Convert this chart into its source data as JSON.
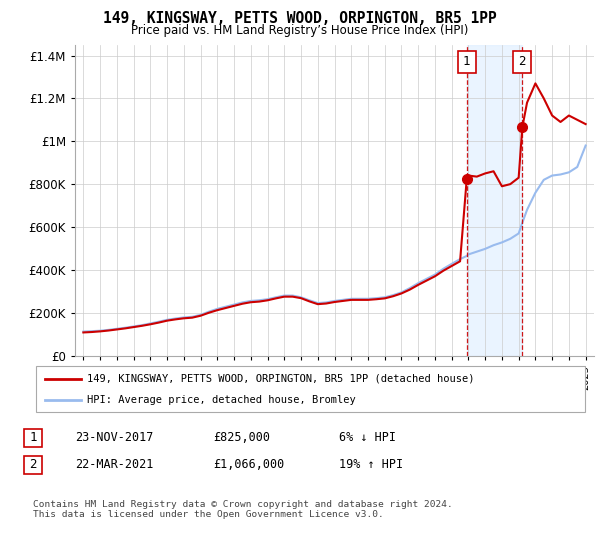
{
  "title": "149, KINGSWAY, PETTS WOOD, ORPINGTON, BR5 1PP",
  "subtitle": "Price paid vs. HM Land Registry’s House Price Index (HPI)",
  "legend_line1": "149, KINGSWAY, PETTS WOOD, ORPINGTON, BR5 1PP (detached house)",
  "legend_line2": "HPI: Average price, detached house, Bromley",
  "annotation1_date": "23-NOV-2017",
  "annotation1_price": "£825,000",
  "annotation1_hpi": "6% ↓ HPI",
  "annotation2_date": "22-MAR-2021",
  "annotation2_price": "£1,066,000",
  "annotation2_hpi": "19% ↑ HPI",
  "footnote": "Contains HM Land Registry data © Crown copyright and database right 2024.\nThis data is licensed under the Open Government Licence v3.0.",
  "red_color": "#cc0000",
  "blue_color": "#99bbee",
  "background_color": "#ffffff",
  "grid_color": "#cccccc",
  "transaction1_x": 2017.9,
  "transaction1_y": 825000,
  "transaction2_x": 2021.22,
  "transaction2_y": 1066000,
  "ylim": [
    0,
    1450000
  ],
  "xlim": [
    1994.5,
    2025.5
  ],
  "hpi_years": [
    1995.0,
    1995.5,
    1996.0,
    1996.5,
    1997.0,
    1997.5,
    1998.0,
    1998.5,
    1999.0,
    1999.5,
    2000.0,
    2000.5,
    2001.0,
    2001.5,
    2002.0,
    2002.5,
    2003.0,
    2003.5,
    2004.0,
    2004.5,
    2005.0,
    2005.5,
    2006.0,
    2006.5,
    2007.0,
    2007.5,
    2008.0,
    2008.5,
    2009.0,
    2009.5,
    2010.0,
    2010.5,
    2011.0,
    2011.5,
    2012.0,
    2012.5,
    2013.0,
    2013.5,
    2014.0,
    2014.5,
    2015.0,
    2015.5,
    2016.0,
    2016.5,
    2017.0,
    2017.5,
    2017.9,
    2018.0,
    2018.5,
    2019.0,
    2019.5,
    2020.0,
    2020.5,
    2021.0,
    2021.22,
    2021.5,
    2022.0,
    2022.5,
    2023.0,
    2023.5,
    2024.0,
    2024.5,
    2025.0
  ],
  "hpi_values": [
    112000,
    114000,
    116000,
    120000,
    125000,
    130000,
    136000,
    142000,
    150000,
    158000,
    167000,
    173000,
    178000,
    181000,
    190000,
    205000,
    218000,
    228000,
    238000,
    248000,
    255000,
    258000,
    263000,
    272000,
    280000,
    280000,
    272000,
    258000,
    245000,
    248000,
    255000,
    260000,
    265000,
    265000,
    265000,
    268000,
    272000,
    282000,
    295000,
    315000,
    338000,
    358000,
    378000,
    405000,
    428000,
    450000,
    465000,
    472000,
    485000,
    498000,
    515000,
    528000,
    545000,
    570000,
    620000,
    680000,
    760000,
    820000,
    840000,
    845000,
    855000,
    880000,
    980000
  ],
  "red_years": [
    1995.0,
    1995.5,
    1996.0,
    1996.5,
    1997.0,
    1997.5,
    1998.0,
    1998.5,
    1999.0,
    1999.5,
    2000.0,
    2000.5,
    2001.0,
    2001.5,
    2002.0,
    2002.5,
    2003.0,
    2003.5,
    2004.0,
    2004.5,
    2005.0,
    2005.5,
    2006.0,
    2006.5,
    2007.0,
    2007.5,
    2008.0,
    2008.5,
    2009.0,
    2009.5,
    2010.0,
    2010.5,
    2011.0,
    2011.5,
    2012.0,
    2012.5,
    2013.0,
    2013.5,
    2014.0,
    2014.5,
    2015.0,
    2015.5,
    2016.0,
    2016.5,
    2017.0,
    2017.5,
    2017.9,
    2018.0,
    2018.5,
    2019.0,
    2019.5,
    2020.0,
    2020.5,
    2021.0,
    2021.22,
    2021.5,
    2022.0,
    2022.5,
    2023.0,
    2023.5,
    2024.0,
    2024.5,
    2025.0
  ],
  "red_values": [
    108000,
    110000,
    113000,
    117000,
    122000,
    127000,
    133000,
    139000,
    146000,
    154000,
    163000,
    169000,
    174000,
    177000,
    186000,
    200000,
    212000,
    222000,
    232000,
    242000,
    249000,
    252000,
    258000,
    267000,
    275000,
    275000,
    268000,
    253000,
    240000,
    243000,
    250000,
    255000,
    260000,
    260000,
    260000,
    263000,
    267000,
    277000,
    290000,
    308000,
    330000,
    350000,
    370000,
    396000,
    418000,
    440000,
    825000,
    840000,
    835000,
    850000,
    860000,
    790000,
    800000,
    830000,
    1066000,
    1180000,
    1270000,
    1200000,
    1120000,
    1090000,
    1120000,
    1100000,
    1080000
  ]
}
